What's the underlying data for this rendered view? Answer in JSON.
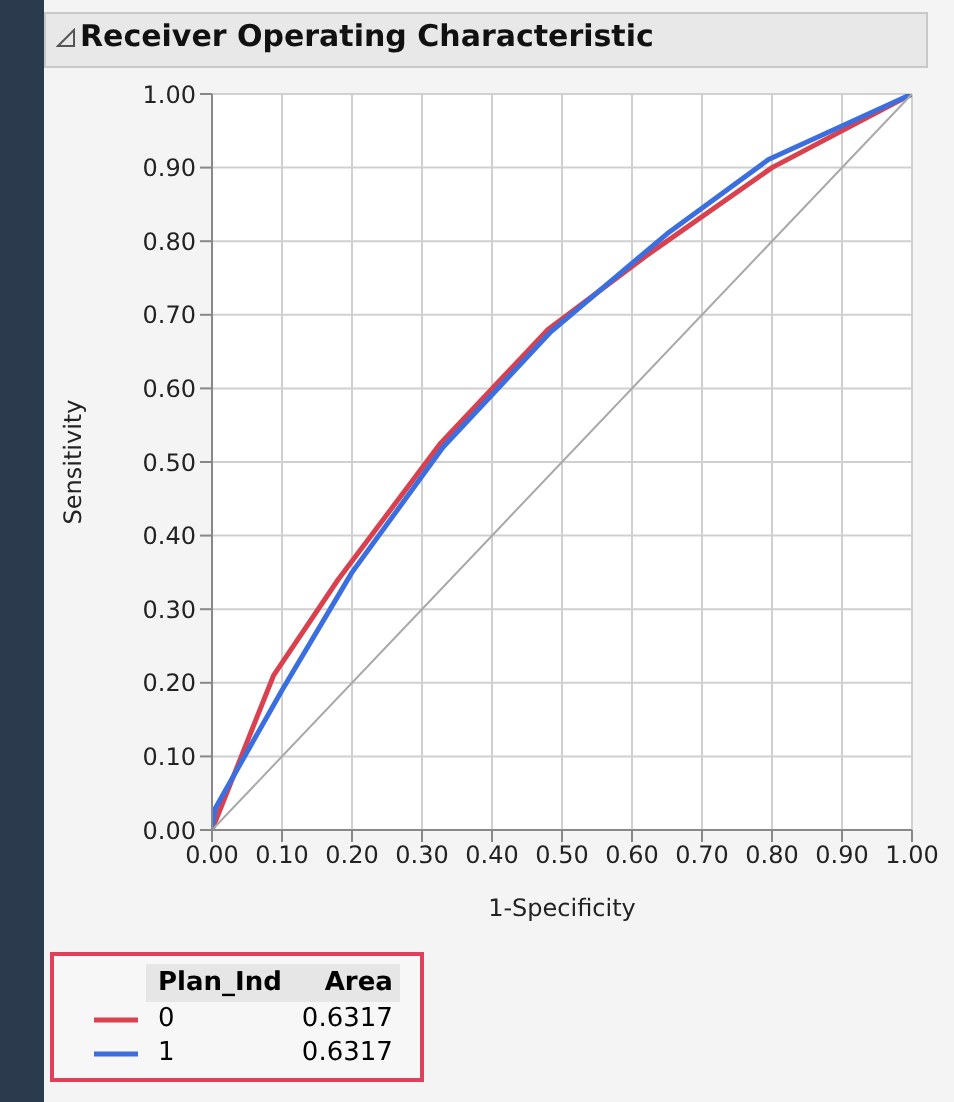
{
  "chart_data": {
    "type": "line",
    "title": "Receiver Operating Characteristic",
    "xlabel": "1-Specificity",
    "ylabel": "Sensitivity",
    "legend_title": "Plan_Ind",
    "annotations": [
      "Area",
      "0.6317",
      "0.6317"
    ],
    "series": [
      {
        "name": "0",
        "color": "#d9414f",
        "x": [
          0,
          0.088,
          0.18,
          0.327,
          0.48,
          0.62,
          0.8,
          1
        ],
        "values": [
          0,
          0.21,
          0.34,
          0.526,
          0.68,
          0.78,
          0.9,
          1
        ]
      },
      {
        "name": "1",
        "color": "#3b6fe0",
        "x": [
          0,
          0.005,
          0.1,
          0.2,
          0.33,
          0.484,
          0.65,
          0.795,
          1
        ],
        "values": [
          0,
          0.03,
          0.19,
          0.35,
          0.52,
          0.677,
          0.81,
          0.911,
          1
        ]
      },
      {
        "color": "#a8a8a8",
        "x": [
          0,
          1
        ],
        "values": [
          0,
          1
        ]
      }
    ],
    "xlim": [
      0,
      1
    ],
    "ylim": [
      0,
      1
    ],
    "xticks": [
      {
        "value": 0,
        "label": "0.00"
      },
      {
        "value": 0.1,
        "label": "0.10"
      },
      {
        "value": 0.2,
        "label": "0.20"
      },
      {
        "value": 0.3,
        "label": "0.30"
      },
      {
        "value": 0.4,
        "label": "0.40"
      },
      {
        "value": 0.5,
        "label": "0.50"
      },
      {
        "value": 0.6,
        "label": "0.60"
      },
      {
        "value": 0.7,
        "label": "0.70"
      },
      {
        "value": 0.8,
        "label": "0.80"
      },
      {
        "value": 0.9,
        "label": "0.90"
      },
      {
        "value": 1,
        "label": "1.00"
      }
    ],
    "yticks": [
      {
        "value": 0,
        "label": "0.00"
      },
      {
        "value": 0.1,
        "label": "0.10"
      },
      {
        "value": 0.2,
        "label": "0.20"
      },
      {
        "value": 0.3,
        "label": "0.30"
      },
      {
        "value": 0.4,
        "label": "0.40"
      },
      {
        "value": 0.5,
        "label": "0.50"
      },
      {
        "value": 0.6,
        "label": "0.60"
      },
      {
        "value": 0.7,
        "label": "0.70"
      },
      {
        "value": 0.8,
        "label": "0.80"
      },
      {
        "value": 0.9,
        "label": "0.90"
      },
      {
        "value": 1,
        "label": "1.00"
      }
    ],
    "grid": true,
    "legend": "bottom left",
    "marker": "none",
    "line_style": "solid"
  }
}
